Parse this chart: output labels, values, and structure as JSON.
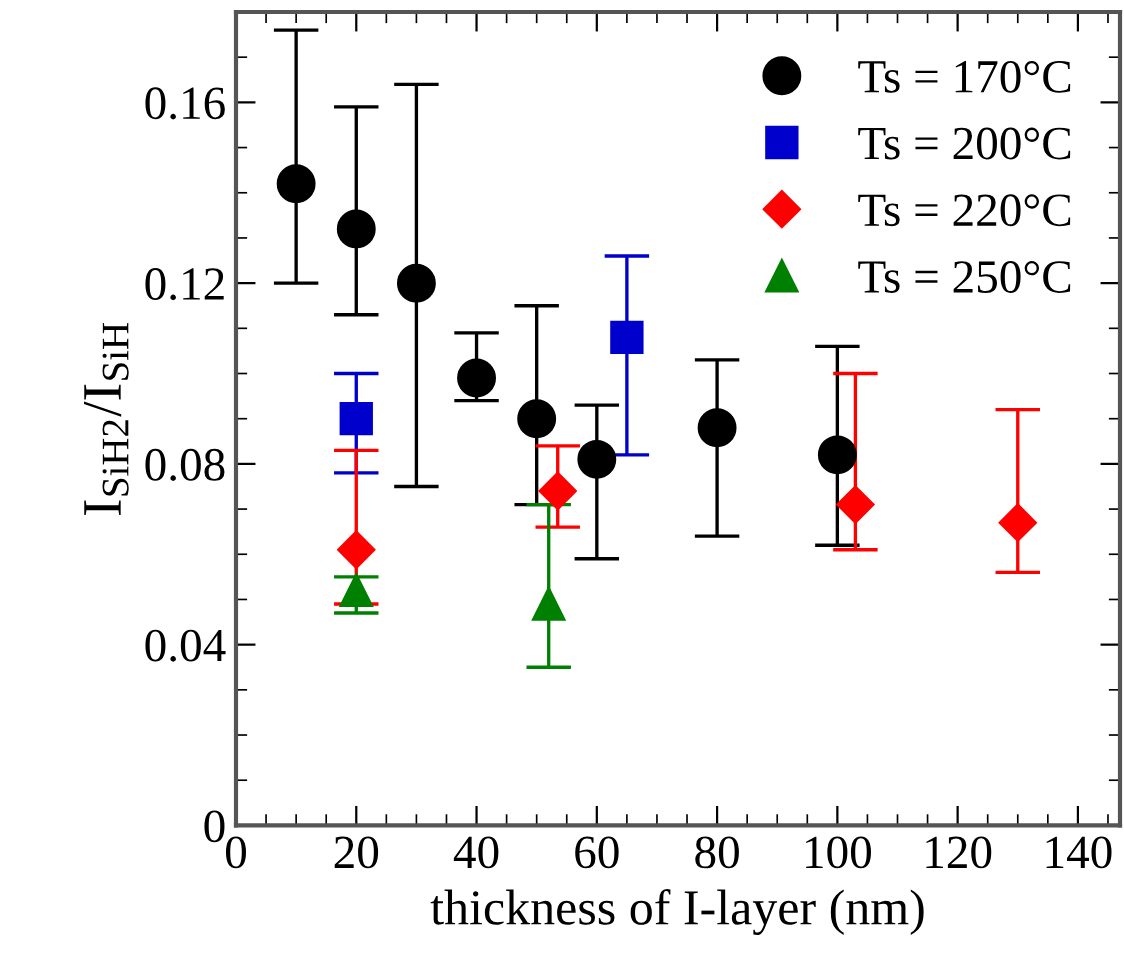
{
  "chart_data": {
    "type": "scatter",
    "xlabel": "thickness of I-layer (nm)",
    "ylabel": "I$_{SiH2}$/I$_{SiH}$",
    "xlim": [
      0,
      147
    ],
    "xticks": [
      0,
      20,
      40,
      60,
      80,
      100,
      120,
      140
    ],
    "ylim": [
      0,
      0.18
    ],
    "yticks": [
      0,
      {
        "value": 0.04,
        "label": "0.04"
      },
      {
        "value": 0.08,
        "label": "0.08"
      },
      {
        "value": 0.12,
        "label": "0.12"
      },
      {
        "value": 0.16,
        "label": "0.16"
      }
    ],
    "grid": false,
    "legend": "top right",
    "series": [
      {
        "name": "Ts = 170°C",
        "color": "#000000",
        "marker": "circle",
        "x": [
          10,
          20,
          30,
          40,
          50,
          60,
          80,
          100
        ],
        "values": [
          0.142,
          0.132,
          0.12,
          0.099,
          0.09,
          0.081,
          0.088,
          0.082
        ],
        "errors": [
          [
            0.12,
            0.176
          ],
          [
            0.113,
            0.159
          ],
          [
            0.075,
            0.164
          ],
          [
            0.094,
            0.109
          ],
          [
            0.071,
            0.115
          ],
          [
            0.059,
            0.093
          ],
          [
            0.064,
            0.103
          ],
          [
            0.062,
            0.106
          ]
        ]
      },
      {
        "name": "Ts = 200°C",
        "color": "#0000cc",
        "marker": "square",
        "x": [
          20,
          65
        ],
        "values": [
          0.09,
          0.108
        ],
        "errors": [
          [
            0.078,
            0.1
          ],
          [
            0.082,
            0.126
          ]
        ]
      },
      {
        "name": "Ts = 220°C",
        "color": "#ff0000",
        "marker": "diamond",
        "x": [
          20,
          53.5,
          103,
          130
        ],
        "values": [
          0.061,
          0.074,
          0.071,
          0.067
        ],
        "errors": [
          [
            0.049,
            0.083
          ],
          [
            0.066,
            0.084
          ],
          [
            0.061,
            0.1
          ],
          [
            0.056,
            0.092
          ]
        ]
      },
      {
        "name": "Ts = 250°C",
        "color": "#008000",
        "marker": "triangle",
        "x": [
          20,
          52
        ],
        "values": [
          0.052,
          0.049
        ],
        "errors": [
          [
            0.047,
            0.055
          ],
          [
            0.035,
            0.071
          ]
        ]
      }
    ]
  }
}
